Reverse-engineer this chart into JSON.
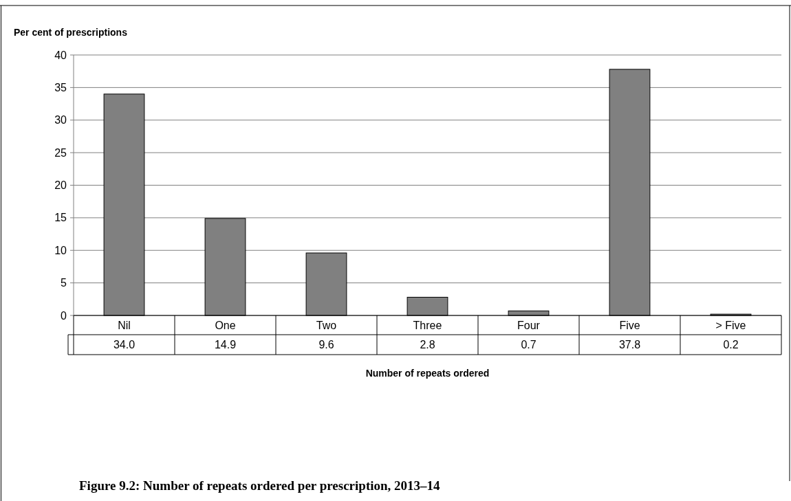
{
  "chart_data": {
    "type": "bar",
    "title": "Figure 9.2: Number of repeats ordered per prescription, 2013–14",
    "ylabel": "Per cent of prescriptions",
    "xlabel": "Number of repeats ordered",
    "categories": [
      "Nil",
      "One",
      "Two",
      "Three",
      "Four",
      "Five",
      "> Five"
    ],
    "values": [
      34.0,
      14.9,
      9.6,
      2.8,
      0.7,
      37.8,
      0.2
    ],
    "value_labels": [
      "34.0",
      "14.9",
      "9.6",
      "2.8",
      "0.7",
      "37.8",
      "0.2"
    ],
    "color": "#808080",
    "ylim": [
      0,
      40
    ],
    "yticks": [
      0,
      5,
      10,
      15,
      20,
      25,
      30,
      35,
      40
    ],
    "grid": "y"
  }
}
